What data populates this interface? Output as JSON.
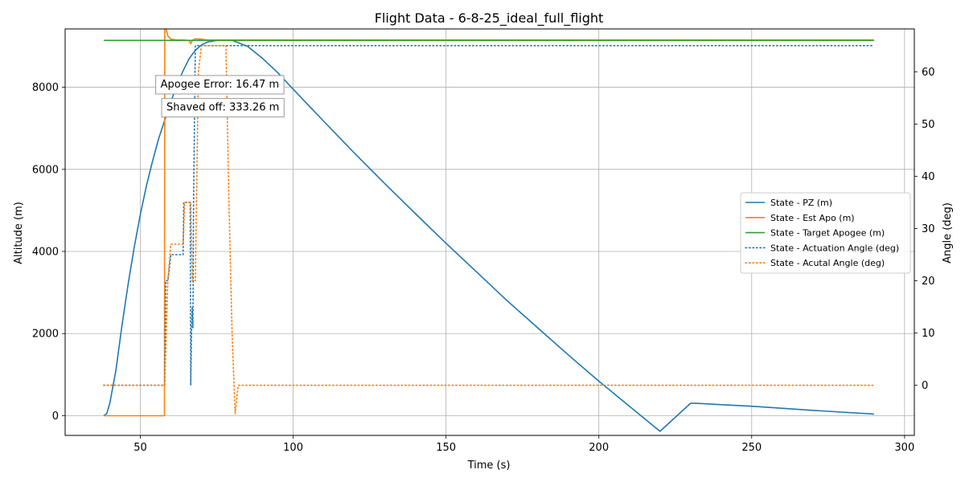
{
  "chart_data": {
    "type": "line",
    "title": "Flight Data - 6-8-25_ideal_full_flight",
    "xlabel": "Time (s)",
    "ylabel": "Altitude (m)",
    "y2label": "Angle (deg)",
    "xlim": [
      25.4,
      303.2
    ],
    "ylim": [
      -480,
      9420
    ],
    "y2lim": [
      -9.6,
      68.2
    ],
    "xticks": [
      50,
      100,
      150,
      200,
      250,
      300
    ],
    "yticks": [
      0,
      2000,
      4000,
      6000,
      8000
    ],
    "y2ticks": [
      0,
      10,
      20,
      30,
      40,
      50,
      60
    ],
    "grid": true,
    "legend_position": "center-right",
    "annotations": [
      {
        "text": "Apogee Error: 16.47 m",
        "x": 76,
        "y": 8080
      },
      {
        "text": "Shaved off: 333.26 m",
        "x": 77,
        "y": 7520
      }
    ],
    "series": [
      {
        "name": "State - PZ (m)",
        "axis": "left",
        "color": "#1f77b4",
        "style": "solid",
        "points": [
          [
            38,
            0
          ],
          [
            39,
            50
          ],
          [
            40,
            300
          ],
          [
            42,
            1100
          ],
          [
            44,
            2200
          ],
          [
            46,
            3200
          ],
          [
            48,
            4100
          ],
          [
            50,
            4900
          ],
          [
            52,
            5600
          ],
          [
            54,
            6200
          ],
          [
            56,
            6750
          ],
          [
            58,
            7200
          ],
          [
            60,
            7650
          ],
          [
            62,
            8050
          ],
          [
            64,
            8400
          ],
          [
            66,
            8700
          ],
          [
            68,
            8900
          ],
          [
            70,
            9030
          ],
          [
            72,
            9100
          ],
          [
            75,
            9140
          ],
          [
            78,
            9150
          ],
          [
            80,
            9140
          ],
          [
            85,
            9000
          ],
          [
            90,
            8700
          ],
          [
            95,
            8350
          ],
          [
            100,
            7950
          ],
          [
            110,
            7170
          ],
          [
            120,
            6400
          ],
          [
            130,
            5650
          ],
          [
            140,
            4920
          ],
          [
            150,
            4200
          ],
          [
            160,
            3500
          ],
          [
            170,
            2800
          ],
          [
            180,
            2140
          ],
          [
            190,
            1480
          ],
          [
            200,
            840
          ],
          [
            210,
            230
          ],
          [
            220,
            -380
          ],
          [
            230,
            300
          ],
          [
            232,
            300
          ],
          [
            250,
            230
          ],
          [
            270,
            130
          ],
          [
            290,
            40
          ]
        ]
      },
      {
        "name": "State - Est Apo (m)",
        "axis": "left",
        "color": "#ff7f0e",
        "style": "solid",
        "points": [
          [
            38,
            0
          ],
          [
            57.9,
            0
          ],
          [
            58,
            9550
          ],
          [
            58.5,
            9400
          ],
          [
            59,
            9250
          ],
          [
            60,
            9170
          ],
          [
            62,
            9150
          ],
          [
            64,
            9150
          ],
          [
            66,
            9140
          ],
          [
            66.5,
            9060
          ],
          [
            67,
            9140
          ],
          [
            68,
            9180
          ],
          [
            70,
            9170
          ],
          [
            72,
            9150
          ],
          [
            290,
            9150
          ]
        ]
      },
      {
        "name": "State - Target Apogee (m)",
        "axis": "left",
        "color": "#2ca02c",
        "style": "solid",
        "points": [
          [
            38,
            9140
          ],
          [
            290,
            9140
          ]
        ]
      },
      {
        "name": "State - Actuation Angle (deg)",
        "axis": "right",
        "color": "#1f77b4",
        "style": "dotted",
        "points": [
          [
            38,
            0
          ],
          [
            58,
            0
          ],
          [
            58.3,
            20
          ],
          [
            59,
            20
          ],
          [
            60,
            25
          ],
          [
            64,
            25
          ],
          [
            64.2,
            35
          ],
          [
            66.3,
            35
          ],
          [
            66.5,
            0
          ],
          [
            66.8,
            12
          ],
          [
            67,
            15
          ],
          [
            67.2,
            11
          ],
          [
            67.4,
            35
          ],
          [
            68,
            65
          ],
          [
            290,
            65
          ]
        ]
      },
      {
        "name": "State - Acutal Angle (deg)",
        "axis": "right",
        "color": "#ff7f0e",
        "style": "dotted",
        "points": [
          [
            38,
            0
          ],
          [
            58,
            0
          ],
          [
            59,
            20
          ],
          [
            60,
            27
          ],
          [
            64,
            27
          ],
          [
            64.5,
            35
          ],
          [
            66.5,
            35
          ],
          [
            67,
            20
          ],
          [
            68,
            20
          ],
          [
            69,
            60
          ],
          [
            70,
            65
          ],
          [
            78,
            65
          ],
          [
            79,
            35
          ],
          [
            80,
            10
          ],
          [
            81,
            -5.5
          ],
          [
            82,
            0
          ],
          [
            290,
            0
          ]
        ]
      }
    ]
  }
}
